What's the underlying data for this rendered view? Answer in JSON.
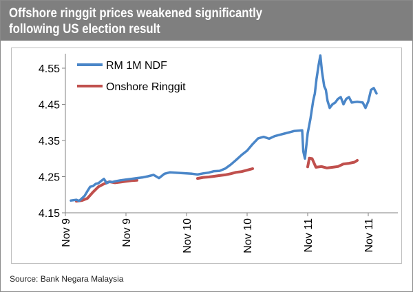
{
  "header": {
    "title_line1": "Offshore ringgit prices weakened significantly",
    "title_line2": "following US election result"
  },
  "source": "Source: Bank Negara Malaysia",
  "chart_data": {
    "type": "line",
    "title": "Offshore ringgit prices weakened significantly following US election result",
    "xlabel": "",
    "ylabel": "",
    "x_range": [
      0,
      55
    ],
    "ylim": [
      4.15,
      4.59
    ],
    "y_ticks": [
      4.15,
      4.25,
      4.35,
      4.45,
      4.55
    ],
    "y_tick_labels": [
      "4.15",
      "4.25",
      "4.35",
      "4.45",
      "4.55"
    ],
    "x_ticks": [
      0,
      11,
      22,
      33,
      44,
      55
    ],
    "x_tick_labels": [
      "Nov 9",
      "Nov 9",
      "Nov 10",
      "Nov 10",
      "Nov 11",
      "Nov 11"
    ],
    "grid": false,
    "legend_position": "top-left",
    "colors": {
      "ndf": "#4a86c8",
      "onshore": "#c0504d"
    },
    "series": [
      {
        "name": "RM 1M NDF",
        "x": [
          1,
          2,
          2.5,
          3,
          3.5,
          4,
          4.5,
          5,
          5.5,
          6,
          6.5,
          7,
          7.5,
          8,
          8.5,
          9,
          10,
          11,
          12,
          13,
          14,
          15,
          16,
          17,
          18,
          19,
          20,
          21,
          22,
          23,
          24,
          25,
          26,
          27,
          28,
          29,
          30,
          31,
          32,
          33,
          34,
          35,
          36,
          37,
          38,
          39,
          40,
          41,
          41.5,
          43,
          43.2,
          43.5,
          44,
          44.5,
          45,
          45.3,
          45.6,
          46,
          46.3,
          46.6,
          47,
          47.3,
          47.6,
          48,
          48.5,
          49,
          49.5,
          50,
          50.5,
          51,
          51.5,
          52,
          52.5,
          53,
          53.5,
          54,
          54.5,
          55,
          55.5,
          56,
          56.5
        ],
        "values": [
          4.184,
          4.186,
          4.183,
          4.19,
          4.197,
          4.21,
          4.222,
          4.224,
          4.23,
          4.232,
          4.238,
          4.244,
          4.232,
          4.236,
          4.235,
          4.237,
          4.24,
          4.242,
          4.244,
          4.246,
          4.248,
          4.251,
          4.255,
          4.246,
          4.258,
          4.262,
          4.261,
          4.26,
          4.259,
          4.258,
          4.256,
          4.259,
          4.261,
          4.265,
          4.266,
          4.272,
          4.283,
          4.296,
          4.31,
          4.322,
          4.34,
          4.356,
          4.36,
          4.355,
          4.362,
          4.366,
          4.37,
          4.374,
          4.376,
          4.378,
          4.32,
          4.3,
          4.37,
          4.41,
          4.46,
          4.48,
          4.52,
          4.56,
          4.585,
          4.54,
          4.5,
          4.49,
          4.46,
          4.44,
          4.45,
          4.455,
          4.465,
          4.47,
          4.45,
          4.465,
          4.47,
          4.455,
          4.456,
          4.457,
          4.456,
          4.455,
          4.44,
          4.458,
          4.49,
          4.495,
          4.48
        ]
      },
      {
        "name": "Onshore Ringgit",
        "x": [
          2,
          3,
          4,
          5,
          6,
          7,
          8,
          9,
          10,
          11,
          12,
          13,
          24,
          25,
          26,
          27,
          28,
          29,
          30,
          31,
          32,
          33,
          34,
          44,
          44.3,
          44.8,
          45.5,
          46.5,
          47.5,
          48.5,
          49.5,
          50.5,
          51.5,
          52.5,
          53
        ],
        "values": [
          4.182,
          4.184,
          4.19,
          4.207,
          4.222,
          4.23,
          4.236,
          4.233,
          4.235,
          4.237,
          4.239,
          4.24,
          4.245,
          4.248,
          4.249,
          4.251,
          4.253,
          4.255,
          4.258,
          4.262,
          4.264,
          4.268,
          4.272,
          4.277,
          4.301,
          4.3,
          4.276,
          4.278,
          4.274,
          4.276,
          4.278,
          4.285,
          4.287,
          4.29,
          4.295
        ]
      }
    ]
  }
}
